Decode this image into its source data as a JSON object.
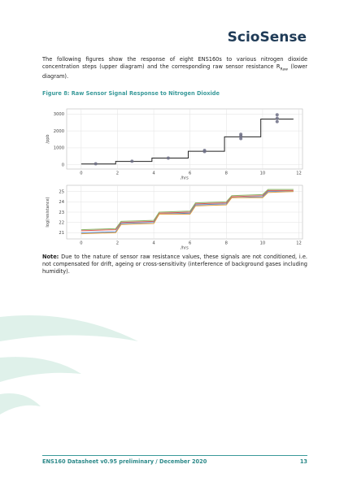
{
  "header": {
    "logo": "ScioSense"
  },
  "intro": {
    "text": "The following figures show the response of eight ENS160s to various nitrogen dioxide concentration steps (upper diagram) and the corresponding raw sensor resistance R",
    "sub": "Raw",
    "tail": " (lower diagram)."
  },
  "caption": "Figure 8: Raw Sensor Signal Response to Nitrogen Dioxide",
  "chart_data": [
    {
      "type": "line",
      "ylabel": "/ppb",
      "xlabel": "/hrs",
      "xlim": [
        -0.8,
        12.2
      ],
      "ylim": [
        -250,
        3300
      ],
      "xticks": [
        0,
        2,
        4,
        6,
        8,
        10,
        12
      ],
      "yticks": [
        0,
        1000,
        2000,
        3000
      ],
      "grid": true,
      "series": [
        {
          "type": "line",
          "color": "#222222",
          "x": [
            0,
            1.9,
            1.9,
            3.9,
            3.9,
            5.9,
            5.9,
            7.9,
            7.9,
            9.9,
            9.9,
            11.7
          ],
          "values": [
            50,
            50,
            200,
            200,
            400,
            400,
            800,
            800,
            1650,
            1650,
            2700,
            2700
          ]
        },
        {
          "type": "scatter",
          "color": "#6d6f85",
          "x": [
            0.8,
            2.8,
            4.8,
            6.8,
            6.8,
            8.8,
            8.8,
            8.8,
            10.8,
            10.8,
            10.8
          ],
          "values": [
            60,
            210,
            400,
            780,
            850,
            1550,
            1700,
            1800,
            2550,
            2750,
            2950
          ]
        }
      ]
    },
    {
      "type": "line",
      "ylabel": "log(resistance)",
      "xlabel": "/hrs",
      "xlim": [
        -0.8,
        12.2
      ],
      "ylim": [
        20.4,
        25.6
      ],
      "xticks": [
        0,
        2,
        4,
        6,
        8,
        10,
        12
      ],
      "yticks": [
        21,
        22,
        23,
        24,
        25
      ],
      "grid": true,
      "series": [
        {
          "type": "line",
          "color": "#d9534f",
          "x": [
            0,
            1.9,
            2.2,
            4,
            4.3,
            6,
            6.3,
            8,
            8.3,
            10,
            10.3,
            11.7
          ],
          "values": [
            21.2,
            21.3,
            22.0,
            22.1,
            22.9,
            23.0,
            23.8,
            23.9,
            24.5,
            24.6,
            25.1,
            25.1
          ]
        },
        {
          "type": "line",
          "color": "#5b8bd0",
          "x": [
            0,
            1.9,
            2.2,
            4,
            4.3,
            6,
            6.3,
            8,
            8.3,
            10,
            10.3,
            11.7
          ],
          "values": [
            21.0,
            21.1,
            21.9,
            22.0,
            22.8,
            22.9,
            23.7,
            23.8,
            24.4,
            24.5,
            25.0,
            25.0
          ]
        },
        {
          "type": "line",
          "color": "#e0a040",
          "x": [
            0,
            1.9,
            2.2,
            4,
            4.3,
            6,
            6.3,
            8,
            8.3,
            10,
            10.3,
            11.7
          ],
          "values": [
            20.9,
            21.0,
            21.8,
            21.9,
            22.8,
            22.8,
            23.6,
            23.7,
            24.4,
            24.4,
            24.9,
            25.0
          ]
        },
        {
          "type": "line",
          "color": "#8bb86a",
          "x": [
            0,
            1.9,
            2.2,
            4,
            4.3,
            6,
            6.3,
            8,
            8.3,
            10,
            10.3,
            11.7
          ],
          "values": [
            21.3,
            21.4,
            22.1,
            22.2,
            23.0,
            23.1,
            23.9,
            24.0,
            24.6,
            24.7,
            25.2,
            25.2
          ]
        }
      ]
    }
  ],
  "note": {
    "label": "Note:",
    "text": " Due to the nature of sensor raw resistance values, these signals are not conditioned, i.e. not compensated for drift, ageing or cross-sensitivity (interference of background gases including humidity)."
  },
  "footer": {
    "title": "ENS160 Datasheet v0.95 preliminary / December 2020",
    "page": "13"
  }
}
